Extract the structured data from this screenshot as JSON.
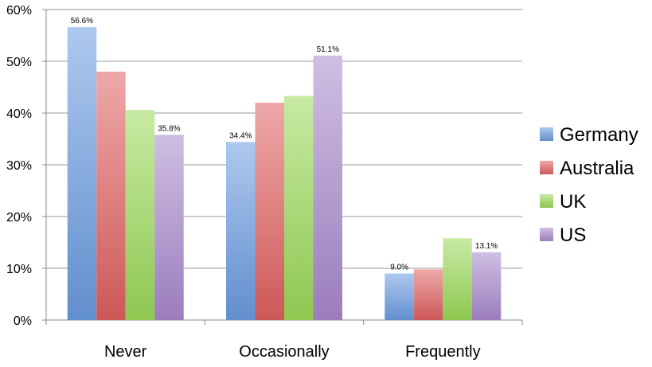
{
  "chart_data": {
    "type": "bar",
    "categories": [
      "Never",
      "Occasionally",
      "Frequently"
    ],
    "series": [
      {
        "name": "Germany",
        "values": [
          56.6,
          34.4,
          9.0
        ],
        "color": "#6a9be0"
      },
      {
        "name": "Australia",
        "values": [
          48.0,
          42.0,
          9.8
        ],
        "color": "#e06060"
      },
      {
        "name": "UK",
        "values": [
          40.6,
          43.3,
          15.8
        ],
        "color": "#9ad858"
      },
      {
        "name": "US",
        "values": [
          35.8,
          51.1,
          13.1
        ],
        "color": "#a888cc"
      }
    ],
    "data_labels": [
      {
        "series": 0,
        "category": 0,
        "text": "56.6%"
      },
      {
        "series": 3,
        "category": 0,
        "text": "35.8%"
      },
      {
        "series": 0,
        "category": 1,
        "text": "34.4%"
      },
      {
        "series": 3,
        "category": 1,
        "text": "51.1%"
      },
      {
        "series": 0,
        "category": 2,
        "text": "9.0%"
      },
      {
        "series": 3,
        "category": 2,
        "text": "13.1%"
      }
    ],
    "yticks": [
      "0%",
      "10%",
      "20%",
      "30%",
      "40%",
      "50%",
      "60%"
    ],
    "ylim": [
      0,
      60
    ],
    "grid": true,
    "legend_position": "right",
    "title": "",
    "xlabel": "",
    "ylabel": ""
  }
}
